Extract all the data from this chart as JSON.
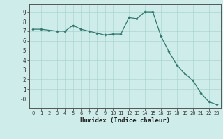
{
  "x": [
    0,
    1,
    2,
    3,
    4,
    5,
    6,
    7,
    8,
    9,
    10,
    11,
    12,
    13,
    14,
    15,
    16,
    17,
    18,
    19,
    20,
    21,
    22,
    23
  ],
  "y": [
    7.2,
    7.2,
    7.1,
    7.0,
    7.0,
    7.6,
    7.2,
    7.0,
    6.8,
    6.6,
    6.7,
    6.7,
    8.4,
    8.3,
    9.0,
    9.0,
    6.5,
    4.9,
    3.5,
    2.6,
    1.9,
    0.6,
    -0.3,
    -0.6
  ],
  "xlim": [
    -0.5,
    23.5
  ],
  "ylim": [
    -1.0,
    9.8
  ],
  "yticks": [
    0,
    1,
    2,
    3,
    4,
    5,
    6,
    7,
    8,
    9
  ],
  "ytick_labels": [
    "-0",
    "1",
    "2",
    "3",
    "4",
    "5",
    "6",
    "7",
    "8",
    "9"
  ],
  "xtick_labels": [
    "0",
    "1",
    "2",
    "3",
    "4",
    "5",
    "6",
    "7",
    "8",
    "9",
    "10",
    "11",
    "12",
    "13",
    "14",
    "15",
    "16",
    "17",
    "18",
    "19",
    "20",
    "21",
    "22",
    "23"
  ],
  "xlabel": "Humidex (Indice chaleur)",
  "line_color": "#2d7a6e",
  "marker": "D",
  "marker_size": 1.8,
  "bg_color": "#ceecea",
  "grid_color": "#aed4d0",
  "axis_bg": "#ceecea"
}
